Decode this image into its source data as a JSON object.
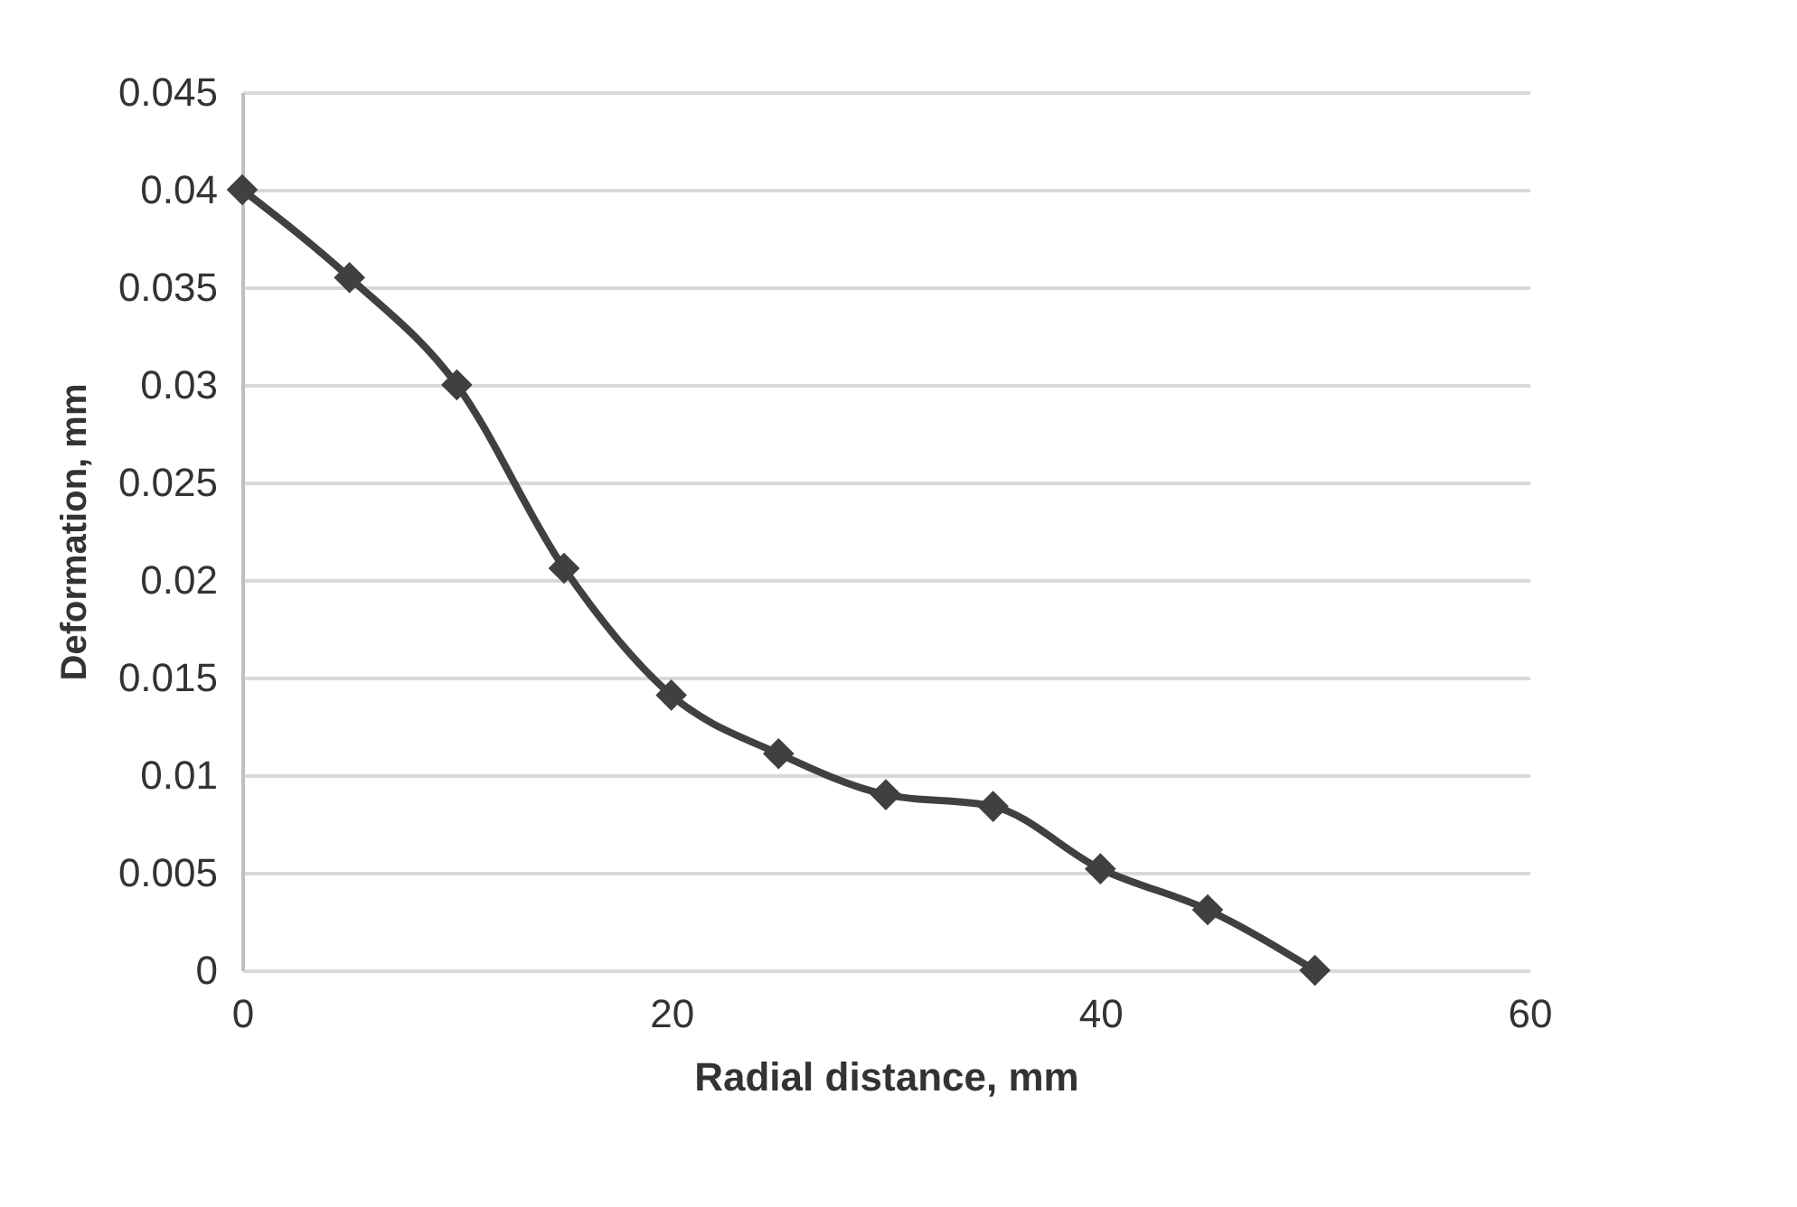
{
  "chart_data": {
    "type": "line",
    "xlabel": "Radial distance, mm",
    "ylabel": "Deformation, mm",
    "x": [
      0,
      5,
      10,
      15,
      20,
      25,
      30,
      35,
      40,
      45,
      50
    ],
    "series": [
      {
        "color": "#404040",
        "values": [
          0.04,
          0.0355,
          0.03,
          0.0206,
          0.0141,
          0.0111,
          0.009,
          0.0084,
          0.0052,
          0.0031,
          0
        ]
      }
    ],
    "xlim": [
      0,
      60
    ],
    "xticks": [
      0,
      20,
      40,
      60
    ],
    "ylim": [
      0,
      0.045
    ],
    "yticks": [
      0,
      0.005,
      0.01,
      0.015,
      0.02,
      0.025,
      0.03,
      0.035,
      0.04,
      0.045
    ],
    "grid": "y",
    "marker": "diamond",
    "line_style": "solid"
  }
}
